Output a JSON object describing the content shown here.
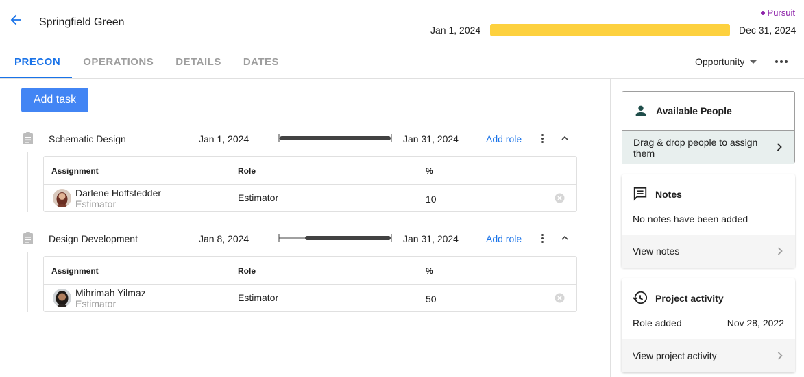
{
  "header": {
    "title": "Springfield Green",
    "status": "Pursuit",
    "start_date": "Jan 1, 2024",
    "end_date": "Dec 31, 2024",
    "timeline_color": "#fdd13f",
    "status_color": "#8e24aa"
  },
  "tabs": [
    {
      "label": "PRECON",
      "active": true
    },
    {
      "label": "OPERATIONS",
      "active": false
    },
    {
      "label": "DETAILS",
      "active": false
    },
    {
      "label": "DATES",
      "active": false
    }
  ],
  "type_select": {
    "value": "Opportunity"
  },
  "add_task_label": "Add task",
  "tasks": [
    {
      "name": "Schematic Design",
      "start": "Jan 1, 2024",
      "end": "Jan 31, 2024",
      "add_role_label": "Add role",
      "columns": [
        "Assignment",
        "Role",
        "%"
      ],
      "assignments": [
        {
          "name": "Darlene Hoffstedder",
          "subtitle": "Estimator",
          "role": "Estimator",
          "percent": "10"
        }
      ]
    },
    {
      "name": "Design Development",
      "start": "Jan 8, 2024",
      "end": "Jan 31, 2024",
      "add_role_label": "Add role",
      "columns": [
        "Assignment",
        "Role",
        "%"
      ],
      "assignments": [
        {
          "name": "Mihrimah Yilmaz",
          "subtitle": "Estimator",
          "role": "Estimator",
          "percent": "50"
        }
      ]
    }
  ],
  "available_people": {
    "title": "Available People",
    "hint": "Drag & drop people to assign them"
  },
  "notes": {
    "title": "Notes",
    "empty": "No notes have been added",
    "link": "View notes"
  },
  "activity": {
    "title": "Project activity",
    "entry_label": "Role added",
    "entry_date": "Nov 28, 2022",
    "link": "View project activity"
  },
  "colors": {
    "accent": "#1a73e8",
    "button": "#4285f4"
  }
}
